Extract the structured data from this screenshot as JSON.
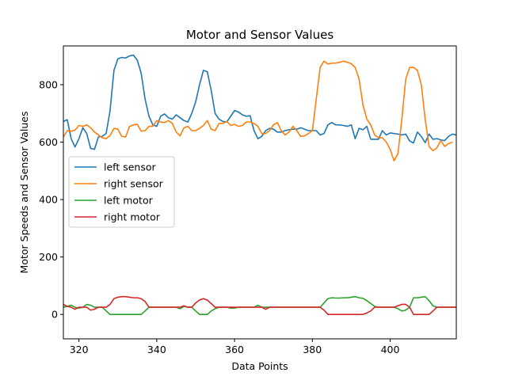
{
  "chart_data": {
    "type": "line",
    "title": "Motor and Sensor Values",
    "xlabel": "Data Points",
    "ylabel": "Motor Speeds and Sensor Values",
    "xlim": [
      316,
      417
    ],
    "ylim": [
      -85,
      935
    ],
    "xticks": [
      320,
      340,
      360,
      380,
      400
    ],
    "yticks": [
      0,
      200,
      400,
      600,
      800
    ],
    "grid": false,
    "legend": "center-left",
    "x_start": 316,
    "series": [
      {
        "name": "left sensor",
        "color": "#1f77b4",
        "values": [
          672,
          678,
          612,
          583,
          612,
          650,
          630,
          578,
          575,
          618,
          620,
          630,
          710,
          850,
          890,
          895,
          893,
          900,
          903,
          885,
          840,
          750,
          690,
          660,
          655,
          690,
          698,
          685,
          680,
          695,
          685,
          675,
          670,
          700,
          740,
          800,
          850,
          845,
          780,
          700,
          680,
          672,
          670,
          690,
          710,
          705,
          695,
          690,
          692,
          640,
          612,
          620,
          640,
          648,
          645,
          635,
          635,
          640,
          643,
          645,
          645,
          650,
          645,
          640,
          640,
          640,
          625,
          630,
          660,
          668,
          660,
          660,
          658,
          655,
          660,
          612,
          648,
          643,
          655,
          610,
          610,
          610,
          640,
          625,
          632,
          630,
          628,
          625,
          628,
          604,
          597,
          635,
          620,
          598,
          628,
          610,
          612,
          608,
          605,
          620,
          628,
          625
        ]
      },
      {
        "name": "right sensor",
        "color": "#ff7f0e",
        "values": [
          618,
          640,
          638,
          642,
          658,
          655,
          660,
          650,
          635,
          625,
          615,
          612,
          623,
          648,
          645,
          620,
          618,
          655,
          660,
          662,
          638,
          640,
          655,
          655,
          675,
          670,
          668,
          675,
          665,
          635,
          622,
          650,
          655,
          640,
          640,
          648,
          658,
          675,
          645,
          640,
          665,
          665,
          672,
          658,
          662,
          655,
          658,
          670,
          670,
          665,
          655,
          630,
          630,
          640,
          660,
          668,
          640,
          625,
          635,
          655,
          640,
          620,
          622,
          630,
          640,
          750,
          860,
          882,
          872,
          875,
          875,
          878,
          882,
          878,
          873,
          860,
          820,
          730,
          680,
          660,
          625,
          615,
          615,
          600,
          575,
          535,
          560,
          680,
          820,
          860,
          860,
          850,
          800,
          680,
          585,
          570,
          580,
          605,
          585,
          595,
          600
        ]
      },
      {
        "name": "left motor",
        "color": "#2ca02c",
        "values": [
          25,
          28,
          32,
          25,
          22,
          25,
          35,
          32,
          25,
          25,
          25,
          12,
          0,
          0,
          0,
          0,
          0,
          0,
          0,
          0,
          0,
          12,
          25,
          25,
          25,
          25,
          25,
          25,
          25,
          25,
          20,
          28,
          25,
          25,
          12,
          0,
          0,
          0,
          12,
          20,
          25,
          25,
          25,
          22,
          22,
          25,
          25,
          25,
          25,
          25,
          32,
          25,
          25,
          25,
          25,
          25,
          25,
          25,
          25,
          25,
          25,
          25,
          25,
          25,
          25,
          25,
          25,
          40,
          55,
          58,
          57,
          57,
          58,
          58,
          60,
          62,
          58,
          56,
          48,
          38,
          28,
          25,
          25,
          25,
          25,
          25,
          20,
          12,
          15,
          25,
          58,
          58,
          60,
          62,
          48,
          30,
          25,
          25,
          25,
          25,
          25,
          25,
          25
        ]
      },
      {
        "name": "right motor",
        "color": "#d62728",
        "values": [
          35,
          28,
          25,
          18,
          25,
          25,
          25,
          15,
          18,
          25,
          25,
          25,
          35,
          55,
          60,
          62,
          62,
          60,
          58,
          58,
          55,
          45,
          25,
          25,
          25,
          25,
          25,
          25,
          25,
          25,
          25,
          30,
          25,
          25,
          40,
          50,
          55,
          50,
          38,
          25,
          25,
          25,
          25,
          25,
          25,
          25,
          25,
          25,
          25,
          25,
          25,
          25,
          18,
          25,
          25,
          25,
          25,
          25,
          25,
          25,
          25,
          25,
          25,
          25,
          25,
          25,
          25,
          15,
          0,
          0,
          0,
          0,
          0,
          0,
          0,
          0,
          0,
          0,
          5,
          12,
          25,
          25,
          25,
          25,
          25,
          25,
          30,
          35,
          35,
          25,
          0,
          0,
          0,
          0,
          0,
          12,
          25,
          25,
          25,
          25,
          25,
          25,
          25
        ]
      }
    ]
  }
}
